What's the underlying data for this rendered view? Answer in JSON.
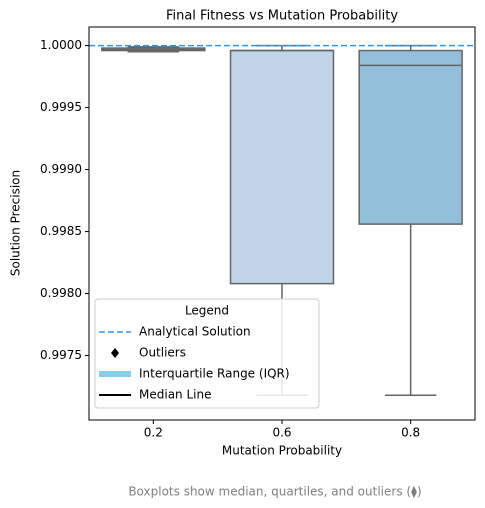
{
  "chart_data": {
    "type": "box",
    "title": "Final Fitness vs Mutation Probability",
    "x_label": "Mutation Probability",
    "y_label": "Solution Precision",
    "caption": "Boxplots show median, quartiles, and outliers (⧫)",
    "categories": [
      "0.2",
      "0.6",
      "0.8"
    ],
    "boxes": [
      {
        "min": 0.99995,
        "q1": 0.99996,
        "median": 0.99997,
        "q3": 0.99998,
        "max": 0.99999,
        "color": "#deebf7"
      },
      {
        "min": 0.99718,
        "q1": 0.99808,
        "median": 0.99996,
        "q3": 0.99996,
        "max": 1.0,
        "color": "#c0d6e8"
      },
      {
        "min": 0.99718,
        "q1": 0.99856,
        "median": 0.99984,
        "q3": 0.99996,
        "max": 1.0,
        "color": "#93bfdb"
      }
    ],
    "reference": {
      "name": "Analytical Solution",
      "value": 1.0,
      "color": "#3a96d8"
    },
    "ylim": [
      0.99698,
      1.00015
    ],
    "yticks": [
      {
        "value": 0.9975,
        "label": "0.9975"
      },
      {
        "value": 0.998,
        "label": "0.9980"
      },
      {
        "value": 0.9985,
        "label": "0.9985"
      },
      {
        "value": 0.999,
        "label": "0.9990"
      },
      {
        "value": 0.9995,
        "label": "0.9995"
      },
      {
        "value": 1.0,
        "label": "1.0000"
      }
    ],
    "legend": {
      "title": "Legend",
      "position": "lower left",
      "entries": [
        {
          "name": "Analytical Solution",
          "color": "#3a96d8"
        },
        {
          "name": "Outliers",
          "color": "#000000"
        },
        {
          "name": "Interquartile Range (IQR)",
          "color": "#87ceeb"
        },
        {
          "name": "Median Line",
          "color": "#000000"
        }
      ]
    }
  }
}
